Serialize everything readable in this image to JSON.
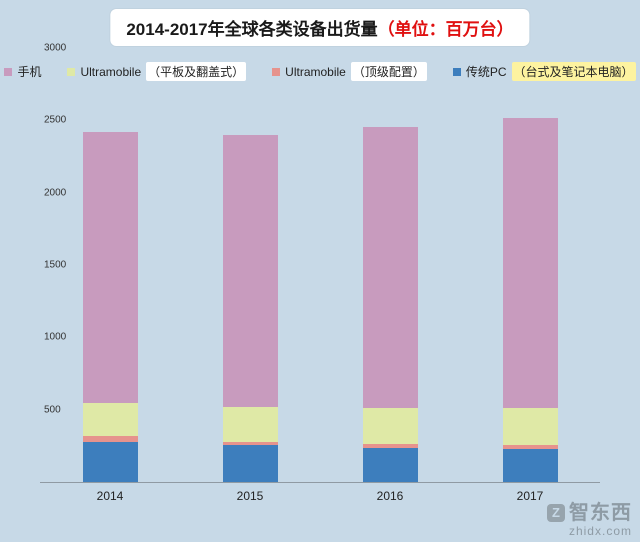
{
  "title": {
    "main": "2014-2017年全球各类设备出货量",
    "unit": "（单位：百万台）"
  },
  "colors": {
    "background": "#c7d9e7",
    "title_unit_red": "#e01010",
    "axis_line": "#8f9aa3",
    "phone": "#c89bbe",
    "ultramobile_tablet": "#dfe9a6",
    "ultramobile_premium": "#e6938d",
    "traditional_pc": "#3d7ebd",
    "watermark_gray": "#8e9ba5"
  },
  "legend": {
    "items": [
      {
        "label_prefix": "手机",
        "label_boxed": "",
        "box_bg": "",
        "color": "#c89bbe"
      },
      {
        "label_prefix": "Ultramobile",
        "label_boxed": "（平板及翻盖式）",
        "box_bg": "#ffffff",
        "color": "#dfe9a6"
      },
      {
        "label_prefix": "Ultramobile",
        "label_boxed": "（顶级配置）",
        "box_bg": "#ffffff",
        "color": "#e6938d"
      },
      {
        "label_prefix": "传统PC",
        "label_boxed": "（台式及笔记本电脑）",
        "box_bg": "#fdf3a0",
        "color": "#3d7ebd"
      }
    ]
  },
  "chart_data": {
    "type": "bar",
    "stacked": true,
    "title": "2014-2017年全球各类设备出货量（单位：百万台）",
    "categories": [
      "2014",
      "2015",
      "2016",
      "2017"
    ],
    "series": [
      {
        "name": "手机",
        "color": "#c89bbe",
        "values": [
          1875,
          1880,
          1945,
          2000
        ]
      },
      {
        "name": "Ultramobile（平板及翻盖式）",
        "color": "#dfe9a6",
        "values": [
          230,
          240,
          250,
          260
        ]
      },
      {
        "name": "Ultramobile（顶级配置）",
        "color": "#e6938d",
        "values": [
          35,
          25,
          25,
          30
        ]
      },
      {
        "name": "传统PC（台式及笔记本电脑）",
        "color": "#3d7ebd",
        "values": [
          280,
          255,
          235,
          225
        ]
      }
    ],
    "totals": [
      2420,
      2400,
      2455,
      2515
    ],
    "xlabel": "",
    "ylabel": "",
    "ylim": [
      0,
      3000
    ],
    "yticks": [
      500,
      1000,
      1500,
      2000,
      2500,
      3000
    ],
    "grid": false,
    "legend_position": "top"
  },
  "watermark": {
    "brand": "智东西",
    "domain": "zhidx.com",
    "logo_letter": "Z"
  }
}
